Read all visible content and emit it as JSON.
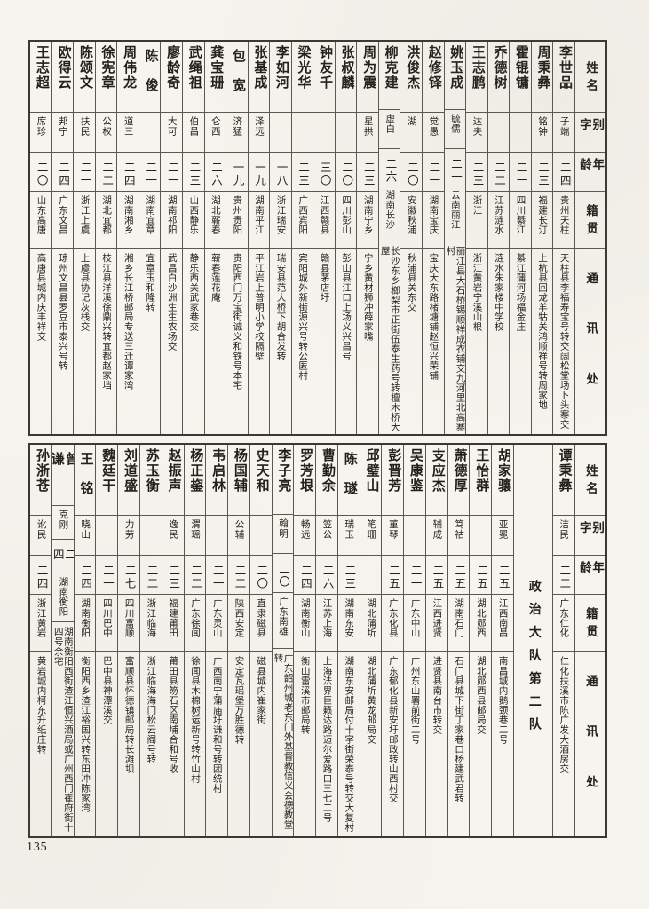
{
  "page": {
    "number": "135"
  },
  "headers": {
    "name": "姓名",
    "alias": "别字",
    "age": "年龄",
    "origin": "籍贯",
    "address": "通讯处"
  },
  "top_table": {
    "persons": [
      {
        "name": "李世品",
        "alias": "子端",
        "age": "二四",
        "origin": "贵州天柱",
        "address": "天柱县李福寿宝号转交阔松堂场卜头寨交"
      },
      {
        "name": "周秉彝",
        "alias": "铭钟",
        "age": "二三",
        "origin": "福建长汀",
        "address": "上杭县回龙羊牯关鸿顺祥号转周家地"
      },
      {
        "name": "霍锟镛",
        "alias": "",
        "age": "二一",
        "origin": "四川綦江",
        "address": "綦江蒲河场福金庄"
      },
      {
        "name": "乔德树",
        "alias": "",
        "age": "二二",
        "origin": "江苏涟水",
        "address": "涟水朱家楼中学校"
      },
      {
        "name": "王志鹏",
        "alias": "达夫",
        "age": "二三",
        "origin": "浙江",
        "address": "浙江黄岩宁溪山根"
      },
      {
        "name": "姚玉成",
        "alias": "毓儒",
        "age": "二一",
        "origin": "云南丽江",
        "address": "丽江县大石桥锡顺祥成衣铺交九河里北高寨村"
      },
      {
        "name": "赵修铎",
        "alias": "觉愚",
        "age": "二一",
        "origin": "湖南宝庆",
        "address": "宝庆大东路楮塘铺赵恒兴荣铺"
      },
      {
        "name": "洪俊杰",
        "alias": "湖",
        "age": "二〇",
        "origin": "安徽秋浦",
        "address": "秋浦县关东交"
      },
      {
        "name": "柳克建",
        "alias": "虚白",
        "age": "二六",
        "origin": "湖南长沙",
        "address": "长沙东乡榔梨市正街伍泰生药号转檀木桥大屋"
      },
      {
        "name": "周为震",
        "alias": "星拱",
        "age": "二三",
        "origin": "湖南宁乡",
        "address": "宁乡黄材狮冲薛家嘴"
      },
      {
        "name": "张叔麟",
        "alias": "",
        "age": "二〇",
        "origin": "四川彭山",
        "address": "彭山县江口上场义兴昌号"
      },
      {
        "name": "钟友千",
        "alias": "",
        "age": "三〇",
        "origin": "江西赣县",
        "address": "赣县茅店圩"
      },
      {
        "name": "梁光华",
        "alias": "",
        "age": "二三",
        "origin": "广西宾阳",
        "address": "宾阳城外新街源兴号转公匿村"
      },
      {
        "name": "李如河",
        "alias": "",
        "age": "一八",
        "origin": "浙江瑞安",
        "address": "瑞安县范大桥下胡合发转"
      },
      {
        "name": "张基成",
        "alias": "泽远",
        "age": "一九",
        "origin": "湖南平江",
        "address": "平江岩上普明小学校隔壁"
      },
      {
        "name": "包宽",
        "alias": "济猛",
        "age": "一九",
        "origin": "贵州贵阳",
        "address": "贵阳西门万宝街诚义和铁号本宅"
      },
      {
        "name": "龚宝珊",
        "alias": "仑西",
        "age": "二六",
        "origin": "湖北蕲春",
        "address": "蕲春莲花庵"
      },
      {
        "name": "武绳祖",
        "alias": "伯昌",
        "age": "二三",
        "origin": "山西静乐",
        "address": "静乐西关武家巷交"
      },
      {
        "name": "廖龄奇",
        "alias": "大可",
        "age": "二一",
        "origin": "湖南祁阳",
        "address": "武昌白沙洲生生农场交"
      },
      {
        "name": "陈俊",
        "alias": "",
        "age": "二一",
        "origin": "湖南宜章",
        "address": "宜章玉和隆转"
      },
      {
        "name": "周伟龙",
        "alias": "道三",
        "age": "二四",
        "origin": "湖南湘乡",
        "address": "湘乡长江桥邮局专送三迁谭家湾"
      },
      {
        "name": "徐宪章",
        "alias": "公权",
        "age": "二二",
        "origin": "湖北宜都",
        "address": "枝江县洋溪徐鼎兴转宜都赵家垱"
      },
      {
        "name": "陈颂文",
        "alias": "扶民",
        "age": "二一",
        "origin": "浙江上虞",
        "address": "上虞县协记灰栈交"
      },
      {
        "name": "欧得云",
        "alias": "邦宁",
        "age": "二四",
        "origin": "广东文昌",
        "address": "琼州文昌县罗豆市泰兴号转"
      },
      {
        "name": "王志超",
        "alias": "席珍",
        "age": "二〇",
        "origin": "山东高唐",
        "address": "高唐县城内庆丰祥交"
      }
    ]
  },
  "bottom_table": {
    "persons": [
      {
        "name": "谭秉彝",
        "alias": "洁民",
        "age": "二二",
        "origin": "广东仁化",
        "address": "仁化扶溪市陈广发大酒房交"
      },
      {
        "divider": "政治大队第二队"
      },
      {
        "name": "胡家骧",
        "alias": "亚冕",
        "age": "二五",
        "origin": "江西南昌",
        "address": "南昌城内鹅颈巷二号"
      },
      {
        "name": "王怡群",
        "alias": "",
        "age": "二五",
        "origin": "湖北郧西",
        "address": "湖北郧西县邮局交"
      },
      {
        "name": "萧德厚",
        "alias": "笃祜",
        "age": "二五",
        "origin": "湖南石门",
        "address": "石门县城下街丁家巷口杨建武君转"
      },
      {
        "name": "支应杰",
        "alias": "辅成",
        "age": "二五",
        "origin": "江西进贤",
        "address": "进贤县南台市转交"
      },
      {
        "name": "吴康鉴",
        "alias": "",
        "age": "二一",
        "origin": "广东中山",
        "address": "广州东山署前街二号"
      },
      {
        "name": "彭晋芳",
        "alias": "菫琴",
        "age": "二五",
        "origin": "广东化县",
        "address": "广东郁化县新安圩邮政转山西村交"
      },
      {
        "name": "邱璧山",
        "alias": "笔珊",
        "age": "",
        "origin": "湖北蒲圻",
        "address": "湖北蒲圻黄龙邮局交"
      },
      {
        "name": "陈璲",
        "alias": "瑞玉",
        "age": "二三",
        "origin": "湖南东安",
        "address": "湖南东安邮局付十字街荣泰号转交大复村"
      },
      {
        "name": "曹勤余",
        "alias": "笠公",
        "age": "二六",
        "origin": "江苏上海",
        "address": "上海法界巨籁达路迈尔爱路口三七二号"
      },
      {
        "name": "罗芳垠",
        "alias": "畅远",
        "age": "二四",
        "origin": "湖南衡山",
        "address": "衡山雷溪市邮局转"
      },
      {
        "name": "李子亮",
        "alias": "翰明",
        "age": "二〇",
        "origin": "广东南雄",
        "address": "广东韶州城老东门外基督教信义会德教堂转"
      },
      {
        "name": "史天和",
        "alias": "",
        "age": "二〇",
        "origin": "直隶磁县",
        "address": "磁县城内崔家街"
      },
      {
        "name": "杨国辅",
        "alias": "公辅",
        "age": "二二",
        "origin": "陕西安定",
        "address": "安定瓦瑶堡万胜德转"
      },
      {
        "name": "韦启林",
        "alias": "",
        "age": "二一",
        "origin": "广东灵山",
        "address": "广西南宁蒲庙圩谦和号转团统村"
      },
      {
        "name": "杨正鋆",
        "alias": "渭瑶",
        "age": "二二",
        "origin": "广东徐闻",
        "address": "徐闻县木棉树运新号转竹山村"
      },
      {
        "name": "赵振声",
        "alias": "逸民",
        "age": "二三",
        "origin": "福建莆田",
        "address": "莆田县笏石区南埔合和号收"
      },
      {
        "name": "苏玉衡",
        "alias": "",
        "age": "二二",
        "origin": "浙江临海",
        "address": "浙江临海海门松云阁号转"
      },
      {
        "name": "刘道盛",
        "alias": "力劳",
        "age": "二七",
        "origin": "四川富顺",
        "address": "富顺县怀德镇邮局转长滩坝"
      },
      {
        "name": "魏廷干",
        "alias": "",
        "age": "二一",
        "origin": "四川巴中",
        "address": "巴中县神潭溪交"
      },
      {
        "name": "王铭",
        "alias": "晓山",
        "age": "二四",
        "origin": "湖南衡阳",
        "address": "衡阳西乡渣江裕国兴转东田冲陈家湾"
      },
      {
        "name": "曾谦",
        "alias": "克刚",
        "age": "二四",
        "origin": "湖南衡阳",
        "address": "湖南衡阳西街渣江恒兴酒局或广州西门崔府街十四号余宅"
      },
      {
        "name": "孙浙苍",
        "alias": "讹民",
        "age": "二四",
        "origin": "浙江黄岩",
        "address": "黄岩城内柯东升纸庄转"
      }
    ]
  }
}
